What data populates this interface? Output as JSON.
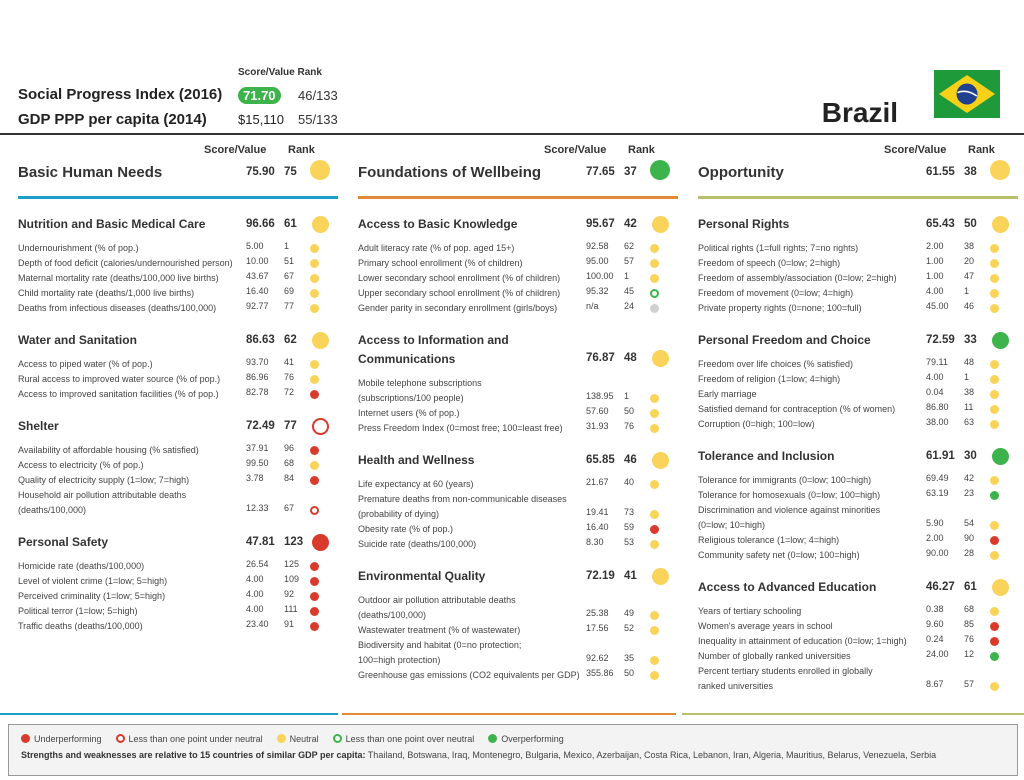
{
  "header": {
    "score_rank_label": "Score/Value Rank",
    "spi_label": "Social Progress Index (2016)",
    "spi_score": "71.70",
    "spi_rank": "46/133",
    "gdp_label": "GDP PPP per capita (2014)",
    "gdp_value": "$15,110",
    "gdp_rank": "55/133",
    "country": "Brazil"
  },
  "colors": {
    "underperforming": "#d93a2b",
    "neutral": "#f9d35a",
    "overperforming": "#3cb44b",
    "bhn_rule": "#1b9fc8",
    "fow_rule": "#e08a3c",
    "opp_rule": "#b9c06c"
  },
  "column_labels": {
    "score_value": "Score/Value",
    "rank": "Rank"
  },
  "columns": [
    {
      "title": "Basic Human Needs",
      "score": "75.90",
      "rank": "75",
      "status": "yellow",
      "sections": [
        {
          "title": "Nutrition and Basic Medical Care",
          "score": "96.66",
          "rank": "61",
          "status": "yellow",
          "indicators": [
            {
              "name": "Undernourishment (% of pop.)",
              "value": "5.00",
              "rank": "1",
              "status": "yellow"
            },
            {
              "name": "Depth of food deficit (calories/undernourished person)",
              "value": "10.00",
              "rank": "51",
              "status": "yellow"
            },
            {
              "name": "Maternal mortality rate (deaths/100,000 live births)",
              "value": "43.67",
              "rank": "67",
              "status": "yellow"
            },
            {
              "name": "Child mortality rate (deaths/1,000 live births)",
              "value": "16.40",
              "rank": "69",
              "status": "yellow"
            },
            {
              "name": "Deaths from infectious diseases (deaths/100,000)",
              "value": "92.77",
              "rank": "77",
              "status": "yellow"
            }
          ]
        },
        {
          "title": "Water and Sanitation",
          "score": "86.63",
          "rank": "62",
          "status": "yellow",
          "indicators": [
            {
              "name": "Access to piped water (% of pop.)",
              "value": "93.70",
              "rank": "41",
              "status": "yellow"
            },
            {
              "name": "Rural access to improved water source (% of pop.)",
              "value": "86.96",
              "rank": "76",
              "status": "yellow"
            },
            {
              "name": "Access to improved sanitation facilities (% of pop.)",
              "value": "82.78",
              "rank": "72",
              "status": "red"
            }
          ]
        },
        {
          "title": "Shelter",
          "score": "72.49",
          "rank": "77",
          "status": "ring-red",
          "indicators": [
            {
              "name": "Availability of affordable housing (% satisfied)",
              "value": "37.91",
              "rank": "96",
              "status": "red"
            },
            {
              "name": "Access to electricity (% of pop.)",
              "value": "99.50",
              "rank": "68",
              "status": "yellow"
            },
            {
              "name": "Quality of electricity supply (1=low; 7=high)",
              "value": "3.78",
              "rank": "84",
              "status": "red"
            },
            {
              "name": "Household air pollution attributable deaths",
              "value": "",
              "rank": "",
              "status": ""
            },
            {
              "name": "(deaths/100,000)",
              "value": "12.33",
              "rank": "67",
              "status": "ring-red"
            }
          ]
        },
        {
          "title": "Personal Safety",
          "score": "47.81",
          "rank": "123",
          "status": "red",
          "indicators": [
            {
              "name": "Homicide rate (deaths/100,000)",
              "value": "26.54",
              "rank": "125",
              "status": "red"
            },
            {
              "name": "Level of violent crime (1=low; 5=high)",
              "value": "4.00",
              "rank": "109",
              "status": "red"
            },
            {
              "name": "Perceived criminality (1=low; 5=high)",
              "value": "4.00",
              "rank": "92",
              "status": "red"
            },
            {
              "name": "Political terror (1=low; 5=high)",
              "value": "4.00",
              "rank": "111",
              "status": "red"
            },
            {
              "name": "Traffic deaths (deaths/100,000)",
              "value": "23.40",
              "rank": "91",
              "status": "red"
            }
          ]
        }
      ]
    },
    {
      "title": "Foundations of Wellbeing",
      "score": "77.65",
      "rank": "37",
      "status": "green",
      "sections": [
        {
          "title": "Access to Basic Knowledge",
          "score": "95.67",
          "rank": "42",
          "status": "yellow",
          "indicators": [
            {
              "name": "Adult literacy rate (% of pop. aged 15+)",
              "value": "92.58",
              "rank": "62",
              "status": "yellow"
            },
            {
              "name": "Primary school enrollment (% of children)",
              "value": "95.00",
              "rank": "57",
              "status": "yellow"
            },
            {
              "name": "Lower secondary school enrollment (% of children)",
              "value": "100.00",
              "rank": "1",
              "status": "yellow"
            },
            {
              "name": "Upper secondary school enrollment (% of children)",
              "value": "95.32",
              "rank": "45",
              "status": "ring-green"
            },
            {
              "name": "Gender parity in secondary enrollment (girls/boys)",
              "value": "n/a",
              "rank": "24",
              "status": "grey"
            }
          ]
        },
        {
          "title": "Access to Information and Communications",
          "score": "76.87",
          "rank": "48",
          "status": "yellow",
          "indicators": [
            {
              "name": "Mobile telephone subscriptions",
              "value": "",
              "rank": "",
              "status": ""
            },
            {
              "name": "(subscriptions/100 people)",
              "value": "138.95",
              "rank": "1",
              "status": "yellow"
            },
            {
              "name": "Internet users (% of pop.)",
              "value": "57.60",
              "rank": "50",
              "status": "yellow"
            },
            {
              "name": "Press Freedom Index (0=most free; 100=least free)",
              "value": "31.93",
              "rank": "76",
              "status": "yellow"
            }
          ]
        },
        {
          "title": "Health and Wellness",
          "score": "65.85",
          "rank": "46",
          "status": "yellow",
          "indicators": [
            {
              "name": "Life expectancy at 60 (years)",
              "value": "21.67",
              "rank": "40",
              "status": "yellow"
            },
            {
              "name": "Premature deaths from non-communicable diseases",
              "value": "",
              "rank": "",
              "status": ""
            },
            {
              "name": "(probability of dying)",
              "value": "19.41",
              "rank": "73",
              "status": "yellow"
            },
            {
              "name": "Obesity rate (% of pop.)",
              "value": "16.40",
              "rank": "59",
              "status": "red"
            },
            {
              "name": "Suicide rate (deaths/100,000)",
              "value": "8.30",
              "rank": "53",
              "status": "yellow"
            }
          ]
        },
        {
          "title": "Environmental Quality",
          "score": "72.19",
          "rank": "41",
          "status": "yellow",
          "indicators": [
            {
              "name": "Outdoor air pollution attributable deaths",
              "value": "",
              "rank": "",
              "status": ""
            },
            {
              "name": "(deaths/100,000)",
              "value": "25.38",
              "rank": "49",
              "status": "yellow"
            },
            {
              "name": "Wastewater treatment (% of wastewater)",
              "value": "17.56",
              "rank": "52",
              "status": "yellow"
            },
            {
              "name": "Biodiversity and habitat (0=no protection;",
              "value": "",
              "rank": "",
              "status": ""
            },
            {
              "name": "100=high protection)",
              "value": "92.62",
              "rank": "35",
              "status": "yellow"
            },
            {
              "name": "Greenhouse gas emissions (CO2 equivalents per GDP)",
              "value": "355.86",
              "rank": "50",
              "status": "yellow"
            }
          ]
        }
      ]
    },
    {
      "title": "Opportunity",
      "score": "61.55",
      "rank": "38",
      "status": "yellow",
      "sections": [
        {
          "title": "Personal Rights",
          "score": "65.43",
          "rank": "50",
          "status": "yellow",
          "indicators": [
            {
              "name": "Political rights (1=full rights; 7=no rights)",
              "value": "2.00",
              "rank": "38",
              "status": "yellow"
            },
            {
              "name": "Freedom of speech (0=low; 2=high)",
              "value": "1.00",
              "rank": "20",
              "status": "yellow"
            },
            {
              "name": "Freedom of assembly/association (0=low; 2=high)",
              "value": "1.00",
              "rank": "47",
              "status": "yellow"
            },
            {
              "name": "Freedom of movement (0=low; 4=high)",
              "value": "4.00",
              "rank": "1",
              "status": "yellow"
            },
            {
              "name": "Private property rights (0=none; 100=full)",
              "value": "45.00",
              "rank": "46",
              "status": "yellow"
            }
          ]
        },
        {
          "title": "Personal Freedom and Choice",
          "score": "72.59",
          "rank": "33",
          "status": "green",
          "indicators": [
            {
              "name": "Freedom over life choices (% satisfied)",
              "value": "79.11",
              "rank": "48",
              "status": "yellow"
            },
            {
              "name": "Freedom of religion (1=low; 4=high)",
              "value": "4.00",
              "rank": "1",
              "status": "yellow"
            },
            {
              "name": "Early marriage",
              "value": "0.04",
              "rank": "38",
              "status": "yellow"
            },
            {
              "name": "Satisfied demand for contraception (% of women)",
              "value": "86.80",
              "rank": "11",
              "status": "yellow"
            },
            {
              "name": "Corruption (0=high; 100=low)",
              "value": "38.00",
              "rank": "63",
              "status": "yellow"
            }
          ]
        },
        {
          "title": "Tolerance and Inclusion",
          "score": "61.91",
          "rank": "30",
          "status": "green",
          "indicators": [
            {
              "name": "Tolerance for immigrants (0=low; 100=high)",
              "value": "69.49",
              "rank": "42",
              "status": "yellow"
            },
            {
              "name": "Tolerance for homosexuals (0=low; 100=high)",
              "value": "63.19",
              "rank": "23",
              "status": "green"
            },
            {
              "name": "Discrimination and violence against minorities",
              "value": "",
              "rank": "",
              "status": ""
            },
            {
              "name": "(0=low; 10=high)",
              "value": "5.90",
              "rank": "54",
              "status": "yellow"
            },
            {
              "name": "Religious tolerance (1=low; 4=high)",
              "value": "2.00",
              "rank": "90",
              "status": "red"
            },
            {
              "name": "Community safety net (0=low; 100=high)",
              "value": "90.00",
              "rank": "28",
              "status": "yellow"
            }
          ]
        },
        {
          "title": "Access to Advanced Education",
          "score": "46.27",
          "rank": "61",
          "status": "yellow",
          "indicators": [
            {
              "name": "Years of tertiary schooling",
              "value": "0.38",
              "rank": "68",
              "status": "yellow"
            },
            {
              "name": "Women's average years in school",
              "value": "9.60",
              "rank": "85",
              "status": "red"
            },
            {
              "name": "Inequality in attainment of education (0=low; 1=high)",
              "value": "0.24",
              "rank": "76",
              "status": "red"
            },
            {
              "name": "Number of globally ranked universities",
              "value": "24.00",
              "rank": "12",
              "status": "green"
            },
            {
              "name": "Percent tertiary students enrolled in globally",
              "value": "",
              "rank": "",
              "status": ""
            },
            {
              "name": "ranked universities",
              "value": "8.67",
              "rank": "57",
              "status": "yellow"
            }
          ]
        }
      ]
    }
  ],
  "legend": {
    "items": [
      {
        "label": "Underperforming",
        "status": "red"
      },
      {
        "label": "Less than one point under neutral",
        "status": "ring-red"
      },
      {
        "label": "Neutral",
        "status": "yellow"
      },
      {
        "label": "Less than one point over neutral",
        "status": "ring-green"
      },
      {
        "label": "Overperforming",
        "status": "green"
      }
    ],
    "note_bold": "Strengths and weaknesses are relative to 15 countries of similar GDP per capita:",
    "note_countries": "Thailand, Botswana, Iraq, Montenegro, Bulgaria, Mexico, Azerbaijan, Costa Rica, Lebanon, Iran, Algeria, Mauritius, Belarus, Venezuela, Serbia"
  }
}
